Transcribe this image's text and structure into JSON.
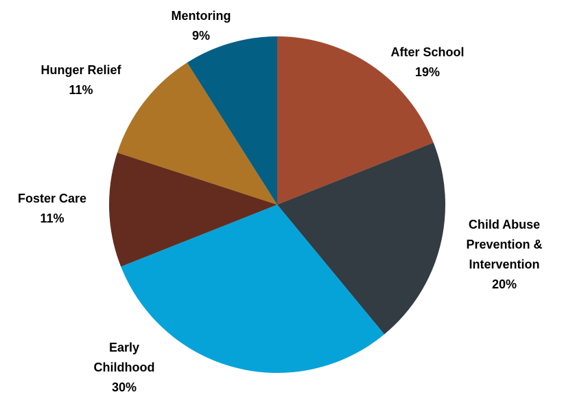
{
  "chart_data": {
    "type": "pie",
    "title": "",
    "slices": [
      {
        "label": "After School",
        "value": 19,
        "value_label": "19%",
        "color": "#A24A30"
      },
      {
        "label": "Child Abuse Prevention & Intervention",
        "value": 20,
        "value_label": "20%",
        "color": "#323C42"
      },
      {
        "label": "Early Childhood",
        "value": 30,
        "value_label": "30%",
        "color": "#06A3D9"
      },
      {
        "label": "Foster Care",
        "value": 11,
        "value_label": "11%",
        "color": "#642C1E"
      },
      {
        "label": "Hunger Relief",
        "value": 11,
        "value_label": "11%",
        "color": "#AE7526"
      },
      {
        "label": "Mentoring",
        "value": 9,
        "value_label": "9%",
        "color": "#045F85"
      }
    ],
    "start_angle": "12 o'clock",
    "direction": "clockwise",
    "legend": "none",
    "labels_outside": true
  }
}
